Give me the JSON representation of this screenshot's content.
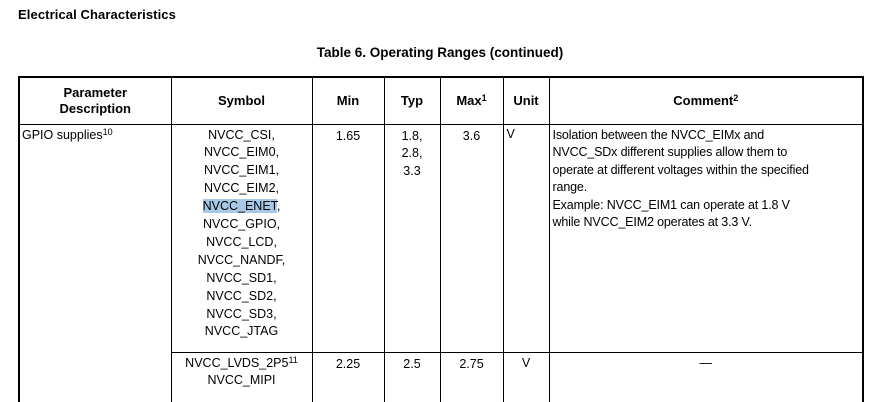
{
  "page": {
    "heading": "Electrical Characteristics",
    "table_title": "Table 6. Operating Ranges (continued)"
  },
  "table": {
    "headers": {
      "parameter": {
        "label": "Parameter Description"
      },
      "symbol": {
        "label": "Symbol"
      },
      "min": {
        "label": "Min"
      },
      "typ": {
        "label": "Typ"
      },
      "max": {
        "label": "Max",
        "sup": "1"
      },
      "unit": {
        "label": "Unit"
      },
      "comment": {
        "label": "Comment",
        "sup": "2"
      }
    },
    "highlight_color": "#a7c8e6",
    "rows": [
      {
        "parameter": {
          "label": "GPIO supplies",
          "sup": "10"
        },
        "symbol_lines": [
          {
            "text": "NVCC_CSI,"
          },
          {
            "text": "NVCC_EIM0,"
          },
          {
            "text": "NVCC_EIM1,"
          },
          {
            "text": "NVCC_EIM2,"
          },
          {
            "text": "NVCC_ENET",
            "highlight": true,
            "suffix": ","
          },
          {
            "text": "NVCC_GPIO,"
          },
          {
            "text": "NVCC_LCD,"
          },
          {
            "text": "NVCC_NANDF,"
          },
          {
            "text": "NVCC_SD1,"
          },
          {
            "text": "NVCC_SD2,"
          },
          {
            "text": "NVCC_SD3,"
          },
          {
            "text": "NVCC_JTAG"
          }
        ],
        "min": "1.65",
        "typ_lines": [
          "1.8,",
          "2.8,",
          "3.3"
        ],
        "max": "3.6",
        "unit": "V",
        "comment_lines": [
          "Isolation between the NVCC_EIMx and",
          "NVCC_SDx different supplies allow them to",
          "operate at different voltages within the specified",
          "range.",
          "Example: NVCC_EIM1 can operate at 1.8 V",
          "while NVCC_EIM2 operates at 3.3 V."
        ]
      },
      {
        "symbol_lines": [
          {
            "text": "NVCC_LVDS_2P5",
            "sup": "11"
          },
          {
            "text": "NVCC_MIPI"
          }
        ],
        "min": "2.25",
        "typ_lines": [
          "2.5"
        ],
        "max": "2.75",
        "unit": "V",
        "comment_lines": [
          "—"
        ]
      }
    ]
  }
}
